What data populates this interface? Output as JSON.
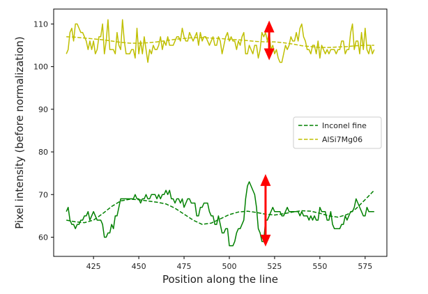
{
  "chart_data": {
    "type": "line",
    "xlabel": "Position along the line",
    "ylabel": "Pixel intensity (before normalization)",
    "xlim": [
      403,
      587
    ],
    "ylim": [
      55.5,
      113.5
    ],
    "xticks": [
      425,
      450,
      475,
      500,
      525,
      550,
      575
    ],
    "yticks": [
      60,
      70,
      80,
      90,
      100,
      110
    ],
    "legend_position": "right",
    "grid": false,
    "legend": [
      {
        "label": "Inconel fine",
        "color": "#008000",
        "style": "dashed"
      },
      {
        "label": "AlSi7Mg06",
        "color": "#bfbf00",
        "style": "dashed"
      }
    ],
    "series": [
      {
        "name": "AlSi7Mg06",
        "kind": "raw",
        "color": "#bfbf00",
        "x": [
          410,
          411,
          412,
          413,
          414,
          415,
          416,
          417,
          418,
          419,
          420,
          421,
          422,
          423,
          424,
          425,
          426,
          427,
          428,
          429,
          430,
          431,
          432,
          433,
          434,
          435,
          436,
          437,
          438,
          439,
          440,
          441,
          442,
          443,
          444,
          445,
          446,
          447,
          448,
          449,
          450,
          451,
          452,
          453,
          454,
          455,
          456,
          457,
          458,
          459,
          460,
          461,
          462,
          463,
          464,
          465,
          466,
          467,
          468,
          469,
          470,
          471,
          472,
          473,
          474,
          475,
          476,
          477,
          478,
          479,
          480,
          481,
          482,
          483,
          484,
          485,
          486,
          487,
          488,
          489,
          490,
          491,
          492,
          493,
          494,
          495,
          496,
          497,
          498,
          499,
          500,
          501,
          502,
          503,
          504,
          505,
          506,
          507,
          508,
          509,
          510,
          511,
          512,
          513,
          514,
          515,
          516,
          517,
          518,
          519,
          520,
          521,
          522,
          523,
          524,
          525,
          526,
          527,
          528,
          529,
          530,
          531,
          532,
          533,
          534,
          535,
          536,
          537,
          538,
          539,
          540,
          541,
          542,
          543,
          544,
          545,
          546,
          547,
          548,
          549,
          550,
          551,
          552,
          553,
          554,
          555,
          556,
          557,
          558,
          559,
          560,
          561,
          562,
          563,
          564,
          565,
          566,
          567,
          568,
          569,
          570,
          571,
          572,
          573,
          574,
          575,
          576,
          577,
          578,
          579,
          580
        ],
        "y": [
          103,
          104,
          108,
          109,
          106,
          110,
          110,
          109,
          108,
          108,
          107,
          106,
          104,
          106,
          104,
          106,
          103,
          104,
          107,
          107,
          110,
          103,
          106,
          111,
          104,
          104,
          104,
          103,
          108,
          105,
          104,
          111,
          106,
          103,
          103,
          103,
          104,
          104,
          102,
          109,
          103,
          106,
          103,
          107,
          104,
          101,
          104,
          103,
          105,
          104,
          104,
          105,
          107,
          104,
          106,
          105,
          107,
          105,
          105,
          105,
          106,
          107,
          107,
          106,
          109,
          107,
          106,
          106,
          108,
          107,
          106,
          107,
          108,
          105,
          108,
          106,
          107,
          107,
          106,
          105,
          106,
          107,
          105,
          105,
          107,
          106,
          103,
          105,
          107,
          108,
          106,
          107,
          106,
          106,
          104,
          106,
          105,
          107,
          108,
          103,
          103,
          105,
          104,
          103,
          105,
          105,
          102,
          104,
          108,
          107,
          108,
          106,
          108,
          104,
          105,
          103,
          104,
          102,
          101,
          101,
          103,
          105,
          104,
          105,
          107,
          106,
          106,
          108,
          106,
          109,
          110,
          107,
          106,
          104,
          104,
          103,
          105,
          105,
          103,
          106,
          102,
          105,
          104,
          103,
          104,
          103,
          104,
          104,
          104,
          103,
          104,
          104,
          106,
          106,
          103,
          104,
          104,
          108,
          110,
          104,
          106,
          106,
          103,
          108,
          104,
          109,
          104,
          103,
          105,
          103,
          104
        ]
      },
      {
        "name": "AlSi7Mg06",
        "kind": "fit",
        "color": "#bfbf00",
        "x": [
          410,
          415,
          420,
          425,
          430,
          435,
          440,
          445,
          450,
          455,
          460,
          465,
          470,
          475,
          480,
          485,
          490,
          495,
          500,
          505,
          510,
          515,
          520,
          525,
          530,
          535,
          540,
          545,
          550,
          555,
          560,
          565,
          570,
          575,
          580
        ],
        "y": [
          107,
          106.9,
          106.7,
          106.5,
          106.3,
          106,
          105.7,
          105.5,
          105.5,
          105.6,
          105.8,
          106.1,
          106.4,
          106.6,
          106.8,
          106.8,
          106.7,
          106.6,
          106.4,
          106.3,
          106.1,
          105.9,
          105.8,
          105.8,
          105.6,
          105.3,
          104.9,
          104.7,
          104.5,
          104.5,
          104.6,
          104.7,
          104.9,
          105,
          105
        ]
      },
      {
        "name": "Inconel fine",
        "kind": "raw",
        "color": "#008000",
        "x": [
          410,
          411,
          412,
          413,
          414,
          415,
          416,
          417,
          418,
          419,
          420,
          421,
          422,
          423,
          424,
          425,
          426,
          427,
          428,
          429,
          430,
          431,
          432,
          433,
          434,
          435,
          436,
          437,
          438,
          439,
          440,
          441,
          442,
          443,
          444,
          445,
          446,
          447,
          448,
          449,
          450,
          451,
          452,
          453,
          454,
          455,
          456,
          457,
          458,
          459,
          460,
          461,
          462,
          463,
          464,
          465,
          466,
          467,
          468,
          469,
          470,
          471,
          472,
          473,
          474,
          475,
          476,
          477,
          478,
          479,
          480,
          481,
          482,
          483,
          484,
          485,
          486,
          487,
          488,
          489,
          490,
          491,
          492,
          493,
          494,
          495,
          496,
          497,
          498,
          499,
          500,
          501,
          502,
          503,
          504,
          505,
          506,
          507,
          508,
          509,
          510,
          511,
          512,
          513,
          514,
          515,
          516,
          517,
          518,
          519,
          520,
          521,
          522,
          523,
          524,
          525,
          526,
          527,
          528,
          529,
          530,
          531,
          532,
          533,
          534,
          535,
          536,
          537,
          538,
          539,
          540,
          541,
          542,
          543,
          544,
          545,
          546,
          547,
          548,
          549,
          550,
          551,
          552,
          553,
          554,
          555,
          556,
          557,
          558,
          559,
          560,
          561,
          562,
          563,
          564,
          565,
          566,
          567,
          568,
          569,
          570,
          571,
          572,
          573,
          574,
          575,
          576,
          577,
          578,
          579,
          580
        ],
        "y": [
          66,
          67,
          64,
          63,
          63,
          62,
          63,
          63,
          64,
          64,
          65,
          65,
          66,
          64,
          65,
          66,
          65,
          64,
          64,
          64,
          63,
          60,
          60,
          61,
          61,
          63,
          62,
          65,
          65,
          67,
          69,
          69,
          69,
          69,
          69,
          69,
          69,
          69,
          70,
          69,
          69,
          68,
          69,
          69,
          70,
          69,
          69,
          70,
          70,
          70,
          69,
          70,
          69,
          70,
          70,
          71,
          70,
          71,
          69,
          69,
          68,
          69,
          69,
          68,
          69,
          67,
          68,
          69,
          69,
          68,
          68,
          68,
          65,
          65,
          67,
          67,
          68,
          68,
          68,
          66,
          65,
          65,
          63,
          63,
          65,
          63,
          61,
          61,
          62,
          62,
          58,
          58,
          58,
          59,
          61,
          62,
          62,
          63,
          64,
          69,
          72,
          73,
          72,
          71,
          70,
          67,
          62,
          61,
          59,
          59,
          64,
          64,
          65,
          66,
          67,
          66,
          66,
          66,
          66,
          65,
          65,
          66,
          67,
          66,
          66,
          66,
          66,
          66,
          66,
          65,
          66,
          65,
          65,
          65,
          64,
          65,
          64,
          65,
          64,
          64,
          67,
          66,
          66,
          66,
          64,
          64,
          66,
          63,
          62,
          62,
          62,
          62,
          63,
          63,
          65,
          64,
          65,
          66,
          66,
          67,
          69,
          68,
          67,
          66,
          65,
          65,
          67,
          66,
          66,
          66,
          66
        ]
      },
      {
        "name": "Inconel fine",
        "kind": "fit",
        "color": "#008000",
        "x": [
          410,
          415,
          420,
          425,
          430,
          435,
          440,
          445,
          450,
          455,
          460,
          465,
          470,
          475,
          480,
          485,
          490,
          495,
          500,
          505,
          510,
          515,
          520,
          525,
          530,
          535,
          540,
          545,
          550,
          555,
          560,
          565,
          570,
          575,
          580
        ],
        "y": [
          64,
          63.6,
          63.4,
          64,
          65.5,
          67.2,
          68.5,
          68.9,
          68.8,
          68.5,
          68.2,
          67.8,
          66.8,
          65.4,
          64,
          63,
          63.3,
          64.3,
          65.3,
          65.9,
          66.1,
          65.8,
          65.4,
          65.2,
          65.5,
          65.9,
          66.2,
          66.1,
          65.6,
          65,
          64.7,
          65.3,
          66.7,
          68.8,
          71
        ]
      }
    ],
    "annotations": [
      {
        "type": "double-arrow",
        "color": "#ff0000",
        "x": 522,
        "y1": 101.5,
        "y2": 110.8
      },
      {
        "type": "double-arrow",
        "color": "#ff0000",
        "x": 520,
        "y1": 57.8,
        "y2": 74.8
      }
    ]
  }
}
